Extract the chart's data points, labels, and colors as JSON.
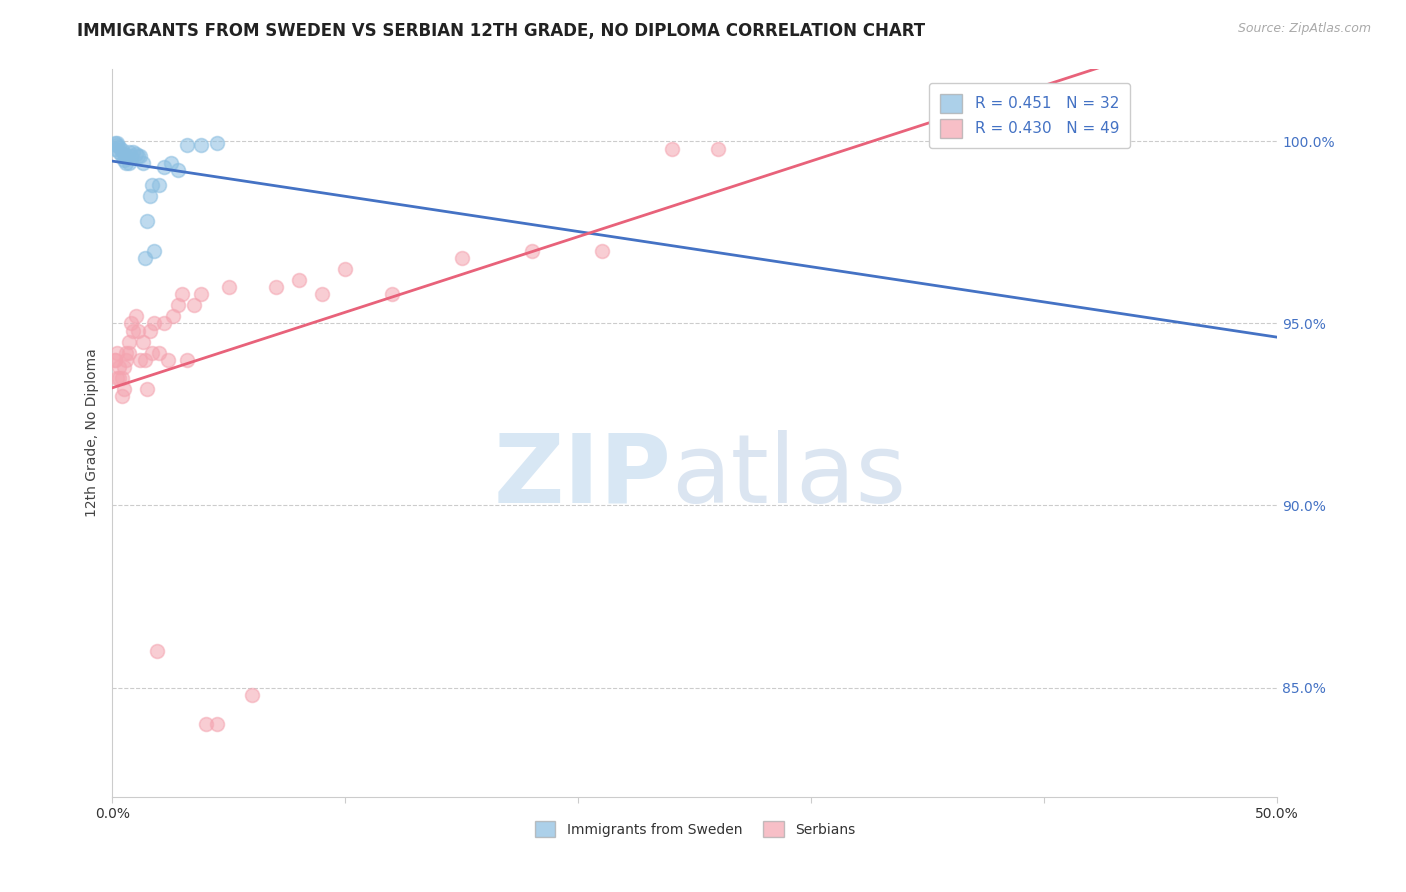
{
  "title": "IMMIGRANTS FROM SWEDEN VS SERBIAN 12TH GRADE, NO DIPLOMA CORRELATION CHART",
  "source": "Source: ZipAtlas.com",
  "ylabel": "12th Grade, No Diploma",
  "ytick_labels": [
    "85.0%",
    "90.0%",
    "95.0%",
    "100.0%"
  ],
  "ytick_values": [
    0.85,
    0.9,
    0.95,
    1.0
  ],
  "legend_entries": [
    {
      "label": "R = 0.451   N = 32",
      "color": "#89bde0"
    },
    {
      "label": "R = 0.430   N = 49",
      "color": "#f4a4b0"
    }
  ],
  "legend_labels": [
    "Immigrants from Sweden",
    "Serbians"
  ],
  "sweden_color": "#89bde0",
  "serbian_color": "#f4a4b0",
  "sweden_line_color": "#4472c4",
  "serbian_line_color": "#e8627a",
  "background_color": "#ffffff",
  "sweden_x": [
    0.001,
    0.001,
    0.002,
    0.002,
    0.003,
    0.003,
    0.004,
    0.004,
    0.005,
    0.005,
    0.006,
    0.006,
    0.007,
    0.007,
    0.008,
    0.009,
    0.01,
    0.011,
    0.012,
    0.013,
    0.014,
    0.015,
    0.016,
    0.017,
    0.018,
    0.02,
    0.022,
    0.025,
    0.028,
    0.032,
    0.038,
    0.045
  ],
  "sweden_y": [
    0.9995,
    0.998,
    0.999,
    0.9995,
    0.997,
    0.9985,
    0.996,
    0.9975,
    0.995,
    0.9965,
    0.996,
    0.994,
    0.997,
    0.994,
    0.996,
    0.997,
    0.9965,
    0.996,
    0.996,
    0.994,
    0.968,
    0.978,
    0.985,
    0.988,
    0.97,
    0.988,
    0.993,
    0.994,
    0.992,
    0.999,
    0.999,
    0.9995
  ],
  "serbian_x": [
    0.001,
    0.001,
    0.002,
    0.002,
    0.003,
    0.003,
    0.004,
    0.004,
    0.005,
    0.005,
    0.006,
    0.006,
    0.007,
    0.007,
    0.008,
    0.009,
    0.01,
    0.011,
    0.012,
    0.013,
    0.014,
    0.015,
    0.016,
    0.017,
    0.018,
    0.019,
    0.02,
    0.022,
    0.024,
    0.026,
    0.028,
    0.03,
    0.032,
    0.035,
    0.038,
    0.04,
    0.045,
    0.05,
    0.06,
    0.07,
    0.08,
    0.09,
    0.1,
    0.12,
    0.15,
    0.18,
    0.21,
    0.24,
    0.26
  ],
  "serbian_y": [
    0.94,
    0.94,
    0.935,
    0.942,
    0.935,
    0.938,
    0.93,
    0.935,
    0.932,
    0.938,
    0.94,
    0.942,
    0.942,
    0.945,
    0.95,
    0.948,
    0.952,
    0.948,
    0.94,
    0.945,
    0.94,
    0.932,
    0.948,
    0.942,
    0.95,
    0.86,
    0.942,
    0.95,
    0.94,
    0.952,
    0.955,
    0.958,
    0.94,
    0.955,
    0.958,
    0.84,
    0.84,
    0.96,
    0.848,
    0.96,
    0.962,
    0.958,
    0.965,
    0.958,
    0.968,
    0.97,
    0.97,
    0.998,
    0.998
  ],
  "xlim_min": 0.0,
  "xlim_max": 0.5,
  "ylim_min": 0.82,
  "ylim_max": 1.02,
  "title_fontsize": 12,
  "axis_fontsize": 10,
  "marker_size": 100
}
